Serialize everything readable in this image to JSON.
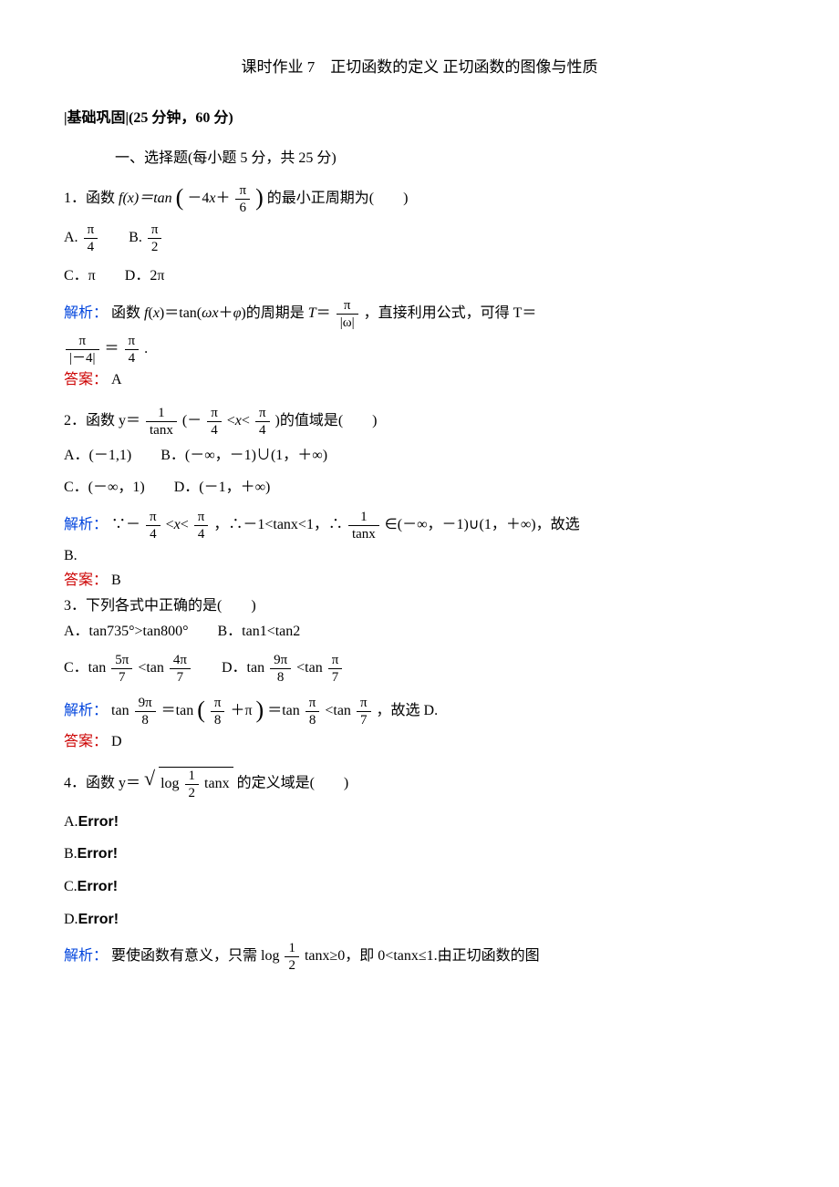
{
  "doc": {
    "title": "课时作业 7　正切函数的定义 正切函数的图像与性质",
    "section_header": "|基础巩固|(25 分钟，60 分)",
    "part1_header": "一、选择题(每小题 5 分，共 25 分)",
    "q1": {
      "stem_a": "1．函数 ",
      "fx": "f(x)＝tan",
      "inner": "－4x＋",
      "pi": "π",
      "six": "6",
      "stem_b": "的最小正周期为(　　)",
      "optA_lbl": "A.",
      "optA_pi": "π",
      "optA_den": "4",
      "optB_lbl": "B.",
      "optB_pi": "π",
      "optB_den": "2",
      "optC": "C．π",
      "optD": "D．2π",
      "sol_lbl": "解析：",
      "sol_a": "函数 ",
      "sol_fx": "f(x)＝tan(ωx＋φ)的周期是 T＝",
      "sol_pi": "π",
      "sol_omega": "|ω|",
      "sol_b": "，直接利用公式，可得 T＝",
      "sol_pi2": "π",
      "sol_den2": "|－4|",
      "sol_eq": "＝",
      "sol_pi3": "π",
      "sol_den3": "4",
      "sol_dot": ".",
      "ans_lbl": "答案：",
      "ans": "A"
    },
    "q2": {
      "stem_a": "2．函数 y＝",
      "one": "1",
      "tanx": "tanx",
      "stem_b": "(－",
      "pi1": "π",
      "four1": "4",
      "lt1": "<x<",
      "pi2": "π",
      "four2": "4",
      "stem_c": ")的值域是(　　)",
      "optA": "A．(－1,1)",
      "optB": "B．(－∞，－1)∪(1，＋∞)",
      "optC": "C．(－∞，1)",
      "optD": "D．(－1，＋∞)",
      "sol_lbl": "解析：",
      "sol_a": "∵－",
      "sol_pi1": "π",
      "sol_four1": "4",
      "sol_b": "<x<",
      "sol_pi2": "π",
      "sol_four2": "4",
      "sol_c": "，∴－1<tanx<1，∴",
      "sol_one": "1",
      "sol_tanx": "tanx",
      "sol_d": "∈(－∞，－1)∪(1，＋∞)，故选",
      "sol_e": "B.",
      "ans_lbl": "答案：",
      "ans": "B"
    },
    "q3": {
      "stem": "3．下列各式中正确的是(　　)",
      "optA": "A．tan735°>tan800°",
      "optB": "B．tan1<tan2",
      "optC_a": "C．tan ",
      "c_num1": "5π",
      "c_den1": "7",
      "optC_b": " <tan ",
      "c_num2": "4π",
      "c_den2": "7",
      "optD_a": "D．tan ",
      "d_num1": "9π",
      "d_den1": "8",
      "optD_b": " <tan",
      "d_num2": "π",
      "d_den2": "7",
      "sol_lbl": "解析：",
      "sol_a": "tan ",
      "s_num1": "9π",
      "s_den1": "8",
      "sol_b": " ＝tan",
      "s_num2": "π",
      "s_den2": "8",
      "sol_c": "＋π",
      "sol_d": "＝tan",
      "s_num3": "π",
      "s_den3": "8",
      "sol_e": "<tan",
      "s_num4": "π",
      "s_den4": "7",
      "sol_f": "，故选 D.",
      "ans_lbl": "答案：",
      "ans": "D"
    },
    "q4": {
      "stem_a": "4．函数 y＝",
      "log": "log",
      "half_num": "1",
      "half_den": "2",
      "tanx": "tanx",
      "stem_b": "的定义域是(　　)",
      "optA": "A.",
      "errA": "Error!",
      "optB": "B.",
      "errB": "Error!",
      "optC": "C.",
      "errC": "Error!",
      "optD": "D.",
      "errD": "Error!",
      "sol_lbl": "解析：",
      "sol_a": "要使函数有意义，只需 log",
      "s_half_num": "1",
      "s_half_den": "2",
      "sol_b": "tanx≥0，即 0<tanx≤1.由正切函数的图"
    }
  },
  "colors": {
    "blue": "#0044dd",
    "red": "#cc0000",
    "text": "#000000",
    "bg": "#ffffff"
  }
}
